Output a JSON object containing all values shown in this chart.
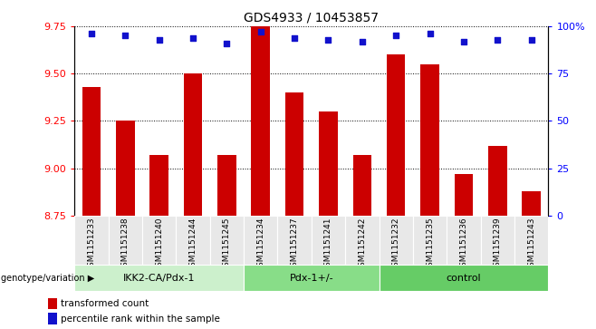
{
  "title": "GDS4933 / 10453857",
  "samples": [
    "GSM1151233",
    "GSM1151238",
    "GSM1151240",
    "GSM1151244",
    "GSM1151245",
    "GSM1151234",
    "GSM1151237",
    "GSM1151241",
    "GSM1151242",
    "GSM1151232",
    "GSM1151235",
    "GSM1151236",
    "GSM1151239",
    "GSM1151243"
  ],
  "bar_values": [
    9.43,
    9.25,
    9.07,
    9.5,
    9.07,
    9.75,
    9.4,
    9.3,
    9.07,
    9.6,
    9.55,
    8.97,
    9.12,
    8.88
  ],
  "dot_values": [
    96,
    95,
    93,
    94,
    91,
    97,
    94,
    93,
    92,
    95,
    96,
    92,
    93,
    93
  ],
  "ylim_left": [
    8.75,
    9.75
  ],
  "ylim_right": [
    0,
    100
  ],
  "yticks_left": [
    8.75,
    9.0,
    9.25,
    9.5,
    9.75
  ],
  "yticks_right": [
    0,
    25,
    50,
    75,
    100
  ],
  "bar_color": "#cc0000",
  "dot_color": "#1111cc",
  "bar_bottom": 8.75,
  "groups": [
    {
      "label": "IKK2-CA/Pdx-1",
      "start": 0,
      "end": 5,
      "color": "#ccf0cc"
    },
    {
      "label": "Pdx-1+/-",
      "start": 5,
      "end": 9,
      "color": "#88dd88"
    },
    {
      "label": "control",
      "start": 9,
      "end": 14,
      "color": "#66cc66"
    }
  ],
  "group_label_prefix": "genotype/variation",
  "legend_bar_label": "transformed count",
  "legend_dot_label": "percentile rank within the sample",
  "tick_fontsize": 8,
  "label_fontsize": 6.5,
  "title_fontsize": 10,
  "hlines": [
    9.0,
    9.25,
    9.5
  ],
  "bar_width": 0.55,
  "bg_color": "#e8e8e8"
}
